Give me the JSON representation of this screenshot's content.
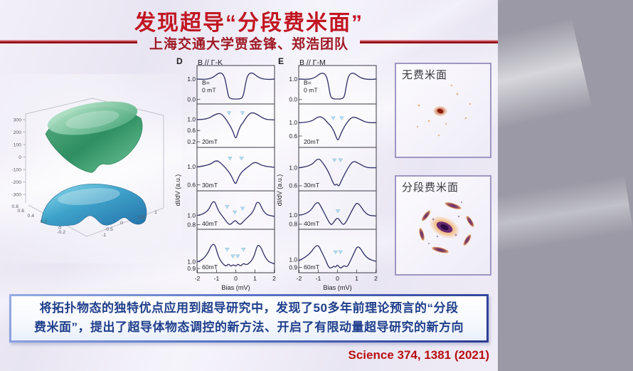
{
  "slide": {
    "title": "发现超导“分段费米面”",
    "subtitle": "上海交通大学贾金锋、郑浩团队",
    "summary_lines": [
      "将拓扑物态的独特优点应用到超导研究中，发现了50多年前理论预言的“分段",
      "费米面”，提出了超导体物态调控的新方法、开启了有限动量超导研究的新方向"
    ],
    "citation": "Science 374, 1381 (2021)"
  },
  "surface_plot": {
    "z_ticks": [
      "300",
      "200",
      "100",
      "0",
      "-100",
      "-200",
      "-300"
    ],
    "left_ticks": [
      "0.8",
      "0.6",
      "0.4",
      "0.2",
      "0",
      "-0.2"
    ],
    "right_ticks": [
      "-1",
      "-0.5",
      "0",
      "0.5",
      "1"
    ]
  },
  "fermi_panels": [
    {
      "label": "无费米面"
    },
    {
      "label": "分段费米面"
    }
  ],
  "chart_data": [
    {
      "type": "line",
      "panel": "D",
      "header": "B // Γ-K",
      "xlabel": "Bias (mV)",
      "ylabel": "dI/dV (a.u.)",
      "xlim": [
        -2,
        2
      ],
      "xticks": [
        -2,
        -1,
        0,
        1,
        2
      ],
      "subpanels": [
        {
          "field": [
            "B=",
            "0 mT"
          ],
          "ymin": -0.15,
          "ymax": 1.6,
          "yticks": [
            {
              "v": 1.0,
              "t": "1.0"
            },
            {
              "v": 0.0,
              "t": "0.0"
            }
          ],
          "arrows": [],
          "points": [
            [
              -2,
              1.0
            ],
            [
              -1.6,
              0.98
            ],
            [
              -1.2,
              1.06
            ],
            [
              -0.85,
              1.34
            ],
            [
              -0.62,
              1.22
            ],
            [
              -0.5,
              0.75
            ],
            [
              -0.4,
              0.2
            ],
            [
              -0.3,
              0.04
            ],
            [
              0,
              0.02
            ],
            [
              0.3,
              0.04
            ],
            [
              0.4,
              0.2
            ],
            [
              0.5,
              0.75
            ],
            [
              0.62,
              1.22
            ],
            [
              0.85,
              1.34
            ],
            [
              1.2,
              1.06
            ],
            [
              1.6,
              0.98
            ],
            [
              2,
              1.0
            ]
          ]
        },
        {
          "field": [
            "20mT"
          ],
          "ymin": 0.05,
          "ymax": 1.5,
          "yticks": [
            {
              "v": 1.0,
              "t": "1.0"
            },
            {
              "v": 0.6,
              "t": "0.6"
            },
            {
              "v": 0.2,
              "t": "0.2"
            }
          ],
          "arrows": [
            [
              -0.35,
              1.28
            ],
            [
              0.35,
              1.28
            ]
          ],
          "points": [
            [
              -2,
              0.99
            ],
            [
              -1.5,
              1.0
            ],
            [
              -1.1,
              1.17
            ],
            [
              -0.8,
              1.23
            ],
            [
              -0.55,
              1.05
            ],
            [
              -0.4,
              0.88
            ],
            [
              -0.25,
              0.72
            ],
            [
              -0.12,
              0.52
            ],
            [
              0,
              0.28
            ],
            [
              0.12,
              0.55
            ],
            [
              0.25,
              0.78
            ],
            [
              0.4,
              0.9
            ],
            [
              0.55,
              1.08
            ],
            [
              0.8,
              1.26
            ],
            [
              1.1,
              1.19
            ],
            [
              1.5,
              1.0
            ],
            [
              2,
              0.98
            ]
          ]
        },
        {
          "field": [
            "30mT"
          ],
          "ymin": 0.5,
          "ymax": 1.4,
          "yticks": [
            {
              "v": 1.0,
              "t": "1.0"
            },
            {
              "v": 0.6,
              "t": "0.6"
            }
          ],
          "arrows": [
            [
              -0.3,
              1.22
            ],
            [
              0.3,
              1.22
            ]
          ],
          "points": [
            [
              -2,
              1.0
            ],
            [
              -1.4,
              1.03
            ],
            [
              -1.0,
              1.16
            ],
            [
              -0.72,
              1.06
            ],
            [
              -0.5,
              0.96
            ],
            [
              -0.33,
              0.87
            ],
            [
              -0.18,
              0.76
            ],
            [
              -0.07,
              0.65
            ],
            [
              0,
              0.62
            ],
            [
              0.1,
              0.72
            ],
            [
              0.25,
              0.86
            ],
            [
              0.45,
              0.94
            ],
            [
              0.7,
              1.02
            ],
            [
              1.0,
              1.12
            ],
            [
              1.4,
              1.02
            ],
            [
              2,
              0.99
            ]
          ]
        },
        {
          "field": [
            "40mT"
          ],
          "ymin": 0.73,
          "ymax": 1.5,
          "yticks": [
            {
              "v": 1.0,
              "t": "1.0"
            },
            {
              "v": 0.8,
              "t": "0.8"
            }
          ],
          "arrows": [
            [
              -0.45,
              1.22
            ],
            [
              -0.05,
              1.1
            ],
            [
              0.35,
              1.18
            ]
          ],
          "points": [
            [
              -2,
              1.0
            ],
            [
              -1.5,
              1.03
            ],
            [
              -1.15,
              1.37
            ],
            [
              -0.92,
              1.1
            ],
            [
              -0.65,
              0.96
            ],
            [
              -0.48,
              0.86
            ],
            [
              -0.32,
              0.79
            ],
            [
              -0.15,
              0.85
            ],
            [
              -0.02,
              0.9
            ],
            [
              0.1,
              0.83
            ],
            [
              0.25,
              0.8
            ],
            [
              0.42,
              0.88
            ],
            [
              0.62,
              0.96
            ],
            [
              0.92,
              1.08
            ],
            [
              1.15,
              1.36
            ],
            [
              1.5,
              1.02
            ],
            [
              2,
              0.98
            ]
          ]
        },
        {
          "field": [
            "60mT"
          ],
          "ymin": 0.86,
          "ymax": 1.45,
          "yticks": [
            {
              "v": 1.0,
              "t": "1.0"
            },
            {
              "v": 0.9,
              "t": "0.9"
            }
          ],
          "arrows": [
            [
              -0.45,
              1.2
            ],
            [
              -0.15,
              1.1
            ],
            [
              0.1,
              1.1
            ],
            [
              0.4,
              1.2
            ]
          ],
          "points": [
            [
              -2,
              1.0
            ],
            [
              -1.6,
              1.03
            ],
            [
              -1.15,
              1.32
            ],
            [
              -0.9,
              1.06
            ],
            [
              -0.68,
              0.97
            ],
            [
              -0.5,
              0.93
            ],
            [
              -0.38,
              0.97
            ],
            [
              -0.25,
              0.93
            ],
            [
              -0.12,
              0.96
            ],
            [
              0,
              0.93
            ],
            [
              0.12,
              0.97
            ],
            [
              0.25,
              0.93
            ],
            [
              0.4,
              0.98
            ],
            [
              0.55,
              0.95
            ],
            [
              0.75,
              0.99
            ],
            [
              0.95,
              1.07
            ],
            [
              1.18,
              1.3
            ],
            [
              1.6,
              1.01
            ],
            [
              2,
              0.97
            ]
          ]
        }
      ]
    },
    {
      "type": "line",
      "panel": "E",
      "header": "B // Γ-M",
      "xlabel": "Bias (mV)",
      "ylabel": "dI/dV (a.u.)",
      "xlim": [
        -2,
        2
      ],
      "xticks": [
        -2,
        -1,
        0,
        1,
        2
      ],
      "subpanels": [
        {
          "field": [
            "B=",
            "0 mT"
          ],
          "ymin": -0.15,
          "ymax": 1.6,
          "yticks": [
            {
              "v": 1.0,
              "t": "1.0"
            },
            {
              "v": 0.0,
              "t": "0.0"
            }
          ],
          "arrows": [],
          "points": [
            [
              -2,
              1.0
            ],
            [
              -1.6,
              0.98
            ],
            [
              -1.2,
              1.05
            ],
            [
              -0.85,
              1.32
            ],
            [
              -0.6,
              1.24
            ],
            [
              -0.48,
              0.8
            ],
            [
              -0.38,
              0.2
            ],
            [
              -0.28,
              0.04
            ],
            [
              0,
              0.02
            ],
            [
              0.28,
              0.04
            ],
            [
              0.38,
              0.2
            ],
            [
              0.48,
              0.8
            ],
            [
              0.6,
              1.24
            ],
            [
              0.85,
              1.32
            ],
            [
              1.2,
              1.05
            ],
            [
              1.6,
              0.98
            ],
            [
              2,
              1.0
            ]
          ]
        },
        {
          "field": [
            "20mT"
          ],
          "ymin": 0.3,
          "ymax": 1.52,
          "yticks": [
            {
              "v": 1.0,
              "t": "1.0"
            },
            {
              "v": 0.6,
              "t": "0.6"
            }
          ],
          "arrows": [
            [
              -0.22,
              1.18
            ],
            [
              0.22,
              1.18
            ]
          ],
          "points": [
            [
              -2,
              1.0
            ],
            [
              -1.4,
              1.01
            ],
            [
              -0.98,
              1.2
            ],
            [
              -0.72,
              1.14
            ],
            [
              -0.5,
              0.99
            ],
            [
              -0.34,
              0.9
            ],
            [
              -0.2,
              0.76
            ],
            [
              -0.1,
              0.62
            ],
            [
              0.02,
              0.44
            ],
            [
              0.14,
              0.62
            ],
            [
              0.28,
              0.8
            ],
            [
              0.46,
              0.98
            ],
            [
              0.75,
              1.18
            ],
            [
              1.05,
              1.14
            ],
            [
              1.5,
              1.0
            ],
            [
              2,
              1.0
            ]
          ]
        },
        {
          "field": [
            "30mT"
          ],
          "ymin": 0.52,
          "ymax": 1.42,
          "yticks": [
            {
              "v": 1.0,
              "t": "1.0"
            },
            {
              "v": 0.6,
              "t": "0.6"
            }
          ],
          "arrows": [
            [
              -0.16,
              1.2
            ],
            [
              0.16,
              1.2
            ]
          ],
          "points": [
            [
              -2,
              1.0
            ],
            [
              -1.4,
              1.03
            ],
            [
              -1.0,
              1.23
            ],
            [
              -0.75,
              1.1
            ],
            [
              -0.52,
              0.95
            ],
            [
              -0.36,
              0.8
            ],
            [
              -0.24,
              0.68
            ],
            [
              -0.14,
              0.6
            ],
            [
              -0.04,
              0.65
            ],
            [
              0.06,
              0.58
            ],
            [
              0.16,
              0.67
            ],
            [
              0.3,
              0.8
            ],
            [
              0.5,
              0.96
            ],
            [
              0.8,
              1.16
            ],
            [
              1.1,
              1.1
            ],
            [
              1.5,
              1.0
            ],
            [
              2,
              1.0
            ]
          ]
        },
        {
          "field": [
            "40mT"
          ],
          "ymin": 0.72,
          "ymax": 1.5,
          "yticks": [
            {
              "v": 1.0,
              "t": "1.0"
            },
            {
              "v": 0.8,
              "t": "0.8"
            }
          ],
          "arrows": [
            [
              0.02,
              1.12
            ]
          ],
          "points": [
            [
              -2,
              1.0
            ],
            [
              -1.5,
              1.02
            ],
            [
              -1.05,
              1.33
            ],
            [
              -0.8,
              1.14
            ],
            [
              -0.56,
              0.94
            ],
            [
              -0.42,
              0.83
            ],
            [
              -0.3,
              0.78
            ],
            [
              -0.16,
              0.87
            ],
            [
              0,
              0.95
            ],
            [
              0.16,
              0.86
            ],
            [
              0.3,
              0.78
            ],
            [
              0.44,
              0.84
            ],
            [
              0.6,
              0.97
            ],
            [
              0.85,
              1.18
            ],
            [
              1.05,
              1.3
            ],
            [
              1.5,
              1.0
            ],
            [
              2,
              0.98
            ]
          ]
        },
        {
          "field": [
            "60mT"
          ],
          "ymin": 0.85,
          "ymax": 1.38,
          "yticks": [
            {
              "v": 1.0,
              "t": "1.0"
            },
            {
              "v": 0.9,
              "t": "0.9"
            }
          ],
          "arrows": [
            [
              -0.1,
              1.12
            ],
            [
              0.16,
              1.12
            ]
          ],
          "points": [
            [
              -2,
              0.99
            ],
            [
              -1.5,
              1.05
            ],
            [
              -1.05,
              1.22
            ],
            [
              -0.82,
              1.1
            ],
            [
              -0.62,
              1.0
            ],
            [
              -0.46,
              0.9
            ],
            [
              -0.32,
              0.89
            ],
            [
              -0.2,
              0.92
            ],
            [
              -0.1,
              0.9
            ],
            [
              0,
              0.94
            ],
            [
              0.1,
              0.9
            ],
            [
              0.2,
              0.89
            ],
            [
              0.34,
              0.93
            ],
            [
              0.5,
              0.9
            ],
            [
              0.68,
              0.99
            ],
            [
              0.88,
              1.1
            ],
            [
              1.08,
              1.2
            ],
            [
              1.5,
              1.02
            ],
            [
              2,
              0.98
            ]
          ]
        }
      ]
    }
  ]
}
